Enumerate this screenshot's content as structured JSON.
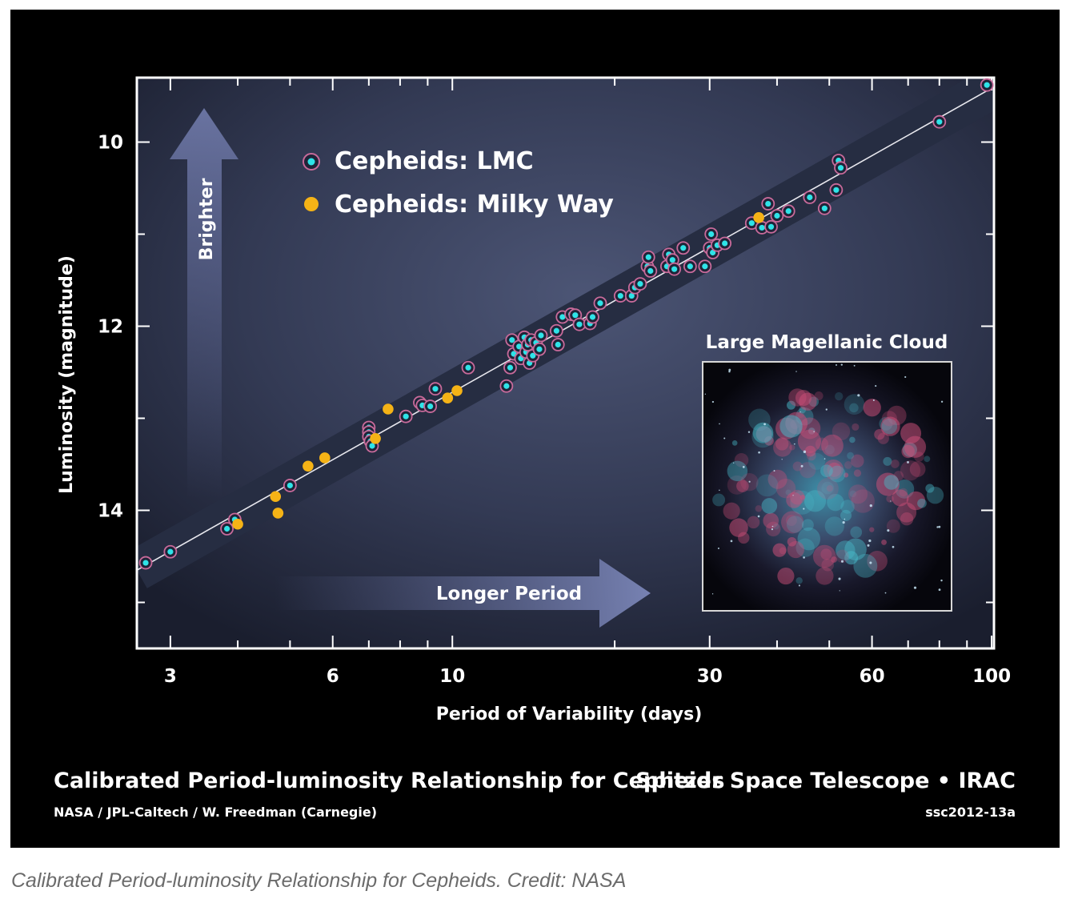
{
  "caption": "Calibrated Period-luminosity Relationship for Cepheids. Credit: NASA",
  "figure": {
    "title": "Calibrated Period-luminosity Relationship for Cepheids",
    "credit": "NASA / JPL-Caltech / W. Freedman (Carnegie)",
    "mission": "Spitzer Space Telescope • IRAC",
    "id_code": "ssc2012-13a",
    "inset_label": "Large Magellanic Cloud",
    "arrow_up_label": "Brighter",
    "arrow_right_label": "Longer Period"
  },
  "colors": {
    "lmc_fill": "#2fe3e8",
    "lmc_ring": "#c86a9a",
    "mw_fill": "#f5b316",
    "band": "#262d42",
    "fit_line": "#e8e8ee"
  },
  "chart_data": {
    "type": "scatter",
    "xlabel": "Period of Variability (days)",
    "ylabel": "Luminosity (magnitude)",
    "x_scale": "log",
    "xlim": [
      2.6,
      101
    ],
    "ylim": [
      15.5,
      9.3
    ],
    "y_inverted": true,
    "x_ticks": [
      3,
      6,
      10,
      30,
      60,
      100
    ],
    "x_tick_labels": [
      "3",
      "6",
      "10",
      "30",
      "60",
      "100"
    ],
    "y_ticks": [
      10,
      12,
      14
    ],
    "y_tick_labels": [
      "10",
      "12",
      "14"
    ],
    "fit_line": {
      "x": [
        2.6,
        101
      ],
      "y": [
        14.65,
        9.4
      ]
    },
    "legend": {
      "position": "top-left"
    },
    "series": [
      {
        "name": "Cepheids: LMC",
        "points": [
          [
            2.7,
            14.57
          ],
          [
            3.0,
            14.45
          ],
          [
            3.82,
            14.2
          ],
          [
            3.95,
            14.1
          ],
          [
            5.0,
            13.73
          ],
          [
            7.0,
            13.1
          ],
          [
            7.0,
            13.15
          ],
          [
            7.0,
            13.2
          ],
          [
            7.05,
            13.25
          ],
          [
            7.1,
            13.3
          ],
          [
            8.2,
            12.98
          ],
          [
            8.7,
            12.83
          ],
          [
            8.8,
            12.86
          ],
          [
            9.1,
            12.87
          ],
          [
            9.3,
            12.68
          ],
          [
            10.7,
            12.45
          ],
          [
            12.9,
            12.15
          ],
          [
            13.0,
            12.3
          ],
          [
            13.3,
            12.22
          ],
          [
            13.4,
            12.35
          ],
          [
            13.6,
            12.12
          ],
          [
            13.7,
            12.28
          ],
          [
            13.8,
            12.2
          ],
          [
            13.9,
            12.4
          ],
          [
            14.0,
            12.15
          ],
          [
            14.1,
            12.32
          ],
          [
            14.3,
            12.18
          ],
          [
            14.5,
            12.25
          ],
          [
            14.6,
            12.1
          ],
          [
            12.8,
            12.45
          ],
          [
            12.6,
            12.65
          ],
          [
            15.6,
            12.05
          ],
          [
            15.7,
            12.2
          ],
          [
            16.0,
            11.9
          ],
          [
            16.6,
            11.87
          ],
          [
            16.9,
            11.88
          ],
          [
            17.2,
            11.98
          ],
          [
            18.0,
            11.97
          ],
          [
            18.2,
            11.9
          ],
          [
            18.8,
            11.75
          ],
          [
            20.5,
            11.67
          ],
          [
            21.5,
            11.67
          ],
          [
            21.8,
            11.58
          ],
          [
            22.3,
            11.54
          ],
          [
            23.0,
            11.35
          ],
          [
            23.1,
            11.25
          ],
          [
            23.3,
            11.4
          ],
          [
            25.0,
            11.35
          ],
          [
            25.2,
            11.22
          ],
          [
            25.6,
            11.28
          ],
          [
            25.8,
            11.38
          ],
          [
            26.8,
            11.15
          ],
          [
            27.6,
            11.35
          ],
          [
            29.4,
            11.35
          ],
          [
            30.0,
            11.15
          ],
          [
            30.2,
            11.0
          ],
          [
            30.4,
            11.2
          ],
          [
            31.0,
            11.12
          ],
          [
            32.0,
            11.1
          ],
          [
            35.9,
            10.88
          ],
          [
            37.5,
            10.93
          ],
          [
            38.5,
            10.67
          ],
          [
            39.0,
            10.92
          ],
          [
            40.0,
            10.8
          ],
          [
            42.0,
            10.75
          ],
          [
            46.0,
            10.6
          ],
          [
            49.0,
            10.72
          ],
          [
            51.5,
            10.52
          ],
          [
            52.0,
            10.2
          ],
          [
            52.5,
            10.28
          ],
          [
            80.0,
            9.78
          ],
          [
            98.0,
            9.38
          ]
        ]
      },
      {
        "name": "Cepheids: Milky Way",
        "points": [
          [
            4.0,
            14.15
          ],
          [
            4.7,
            13.85
          ],
          [
            4.75,
            14.03
          ],
          [
            5.4,
            13.52
          ],
          [
            5.8,
            13.43
          ],
          [
            7.2,
            13.22
          ],
          [
            7.6,
            12.9
          ],
          [
            9.8,
            12.78
          ],
          [
            10.2,
            12.7
          ],
          [
            37.0,
            10.82
          ]
        ]
      }
    ]
  }
}
